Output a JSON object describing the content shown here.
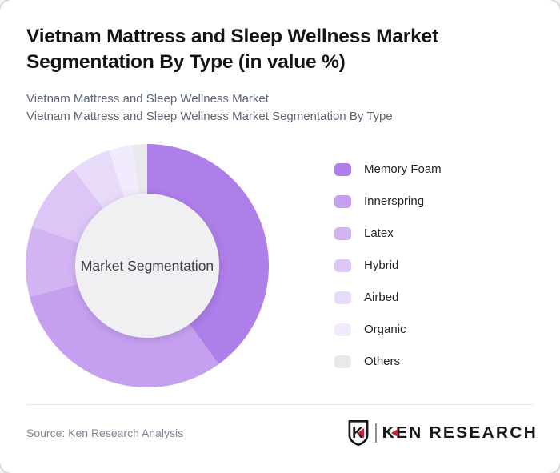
{
  "card": {
    "title": "Vietnam Mattress and Sleep Wellness Market Segmentation By Type (in value %)",
    "subtitle_line1": "Vietnam Mattress and Sleep Wellness Market",
    "subtitle_line2": "Vietnam Mattress and Sleep Wellness Market Segmentation By Type"
  },
  "chart_data": {
    "type": "pie",
    "variant": "donut",
    "title": "Vietnam Mattress and Sleep Wellness Market Segmentation By Type (in value %)",
    "center_label": "Market Segmentation",
    "categories": [
      "Memory Foam",
      "Innerspring",
      "Latex",
      "Hybrid",
      "Airbed",
      "Organic",
      "Others"
    ],
    "values": [
      40.0,
      30.9,
      9.3,
      9.4,
      5.3,
      3.2,
      1.9
    ],
    "colors": [
      "#ae7ee9",
      "#c5a0f0",
      "#d2b4f2",
      "#ddc5f6",
      "#e8daf9",
      "#f2ebfd",
      "#e9e8ea"
    ],
    "start_angle_deg": 0,
    "direction": "clockwise",
    "inner_radius_ratio": 0.59,
    "hole_color": "#f0eff2",
    "legend_position": "right",
    "unit": "%"
  },
  "footer": {
    "source": "Source: Ken Research Analysis",
    "brand": {
      "shield_letter": "K",
      "k_letter": "K",
      "rest_text": "EN RESEARCH",
      "accent_color": "#c42430",
      "text_color": "#17181c"
    }
  }
}
